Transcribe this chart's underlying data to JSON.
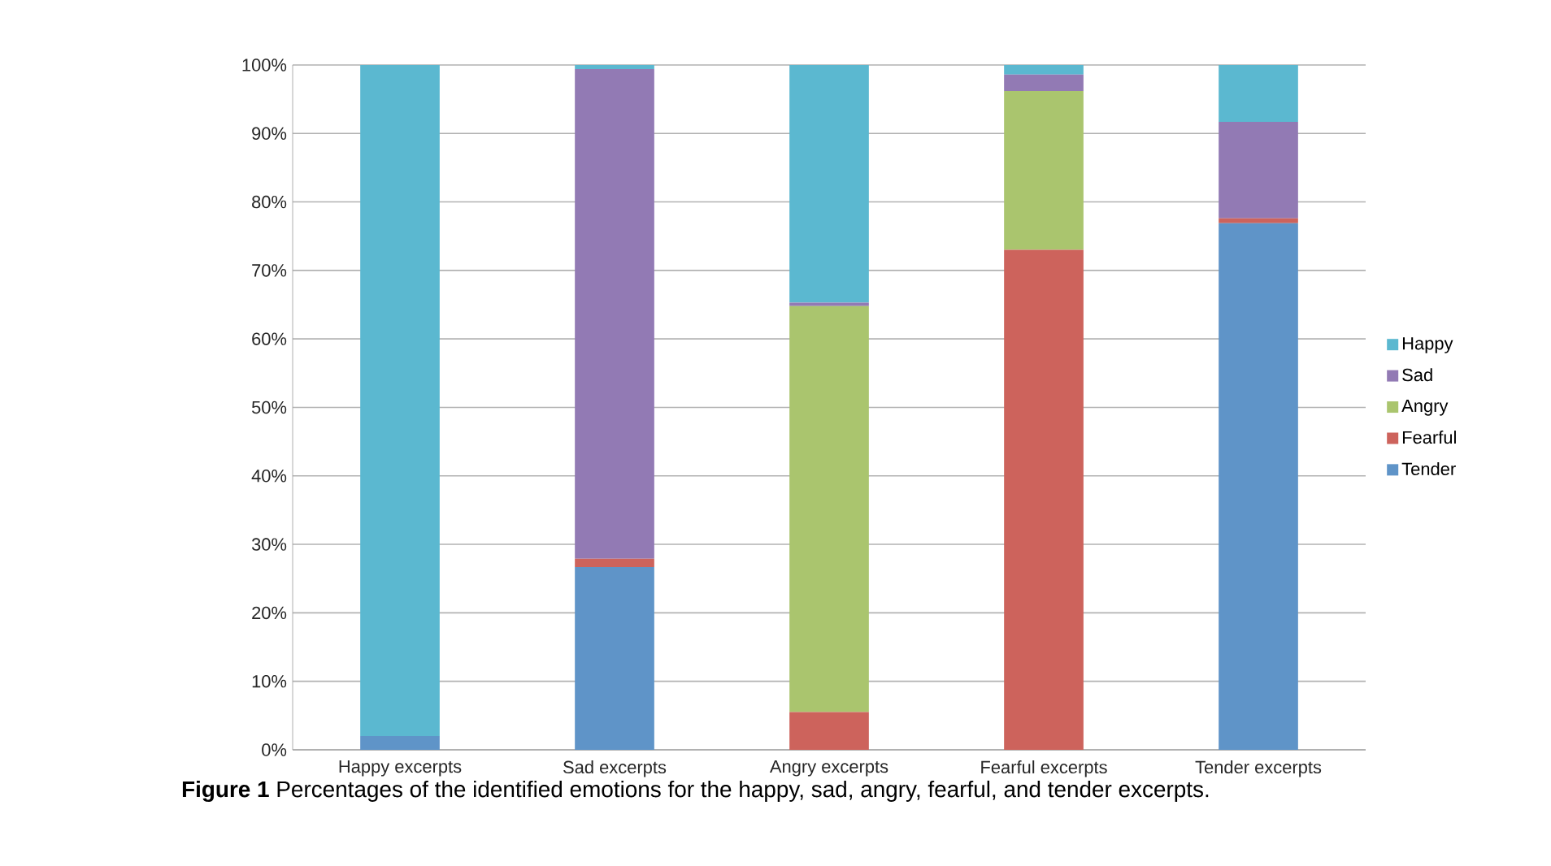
{
  "chart_data": {
    "type": "bar",
    "stacked": true,
    "categories": [
      "Happy excerpts",
      "Sad excerpts",
      "Angry excerpts",
      "Fearful excerpts",
      "Tender excerpts"
    ],
    "series": [
      {
        "name": "Tender",
        "color": "#5f94c8",
        "values": [
          2,
          26.7,
          0,
          0,
          76.9
        ]
      },
      {
        "name": "Fearful",
        "color": "#cd635c",
        "values": [
          0,
          1.2,
          5.5,
          73,
          0.7
        ]
      },
      {
        "name": "Angry",
        "color": "#aac56e",
        "values": [
          0,
          0,
          59.3,
          23.2,
          0
        ]
      },
      {
        "name": "Sad",
        "color": "#927ab4",
        "values": [
          0,
          71.5,
          0.5,
          2.4,
          14.1
        ]
      },
      {
        "name": "Happy",
        "color": "#5bb8d0",
        "values": [
          98,
          0.6,
          34.7,
          1.4,
          8.3
        ]
      }
    ],
    "ylim": [
      0,
      100
    ],
    "yticks": [
      {
        "value": 0,
        "label": "0%"
      },
      {
        "value": 10,
        "label": "10%"
      },
      {
        "value": 20,
        "label": "20%"
      },
      {
        "value": 30,
        "label": "30%"
      },
      {
        "value": 40,
        "label": "40%"
      },
      {
        "value": 50,
        "label": "50%"
      },
      {
        "value": 60,
        "label": "60%"
      },
      {
        "value": 70,
        "label": "70%"
      },
      {
        "value": 80,
        "label": "80%"
      },
      {
        "value": 90,
        "label": "90%"
      },
      {
        "value": 100,
        "label": "100%"
      }
    ],
    "grid": "y",
    "legend": "right",
    "annotations": [
      "**Figure 1** Percentages of the identified emotions for the happy, sad, angry, fearful, and tender excerpts."
    ]
  }
}
